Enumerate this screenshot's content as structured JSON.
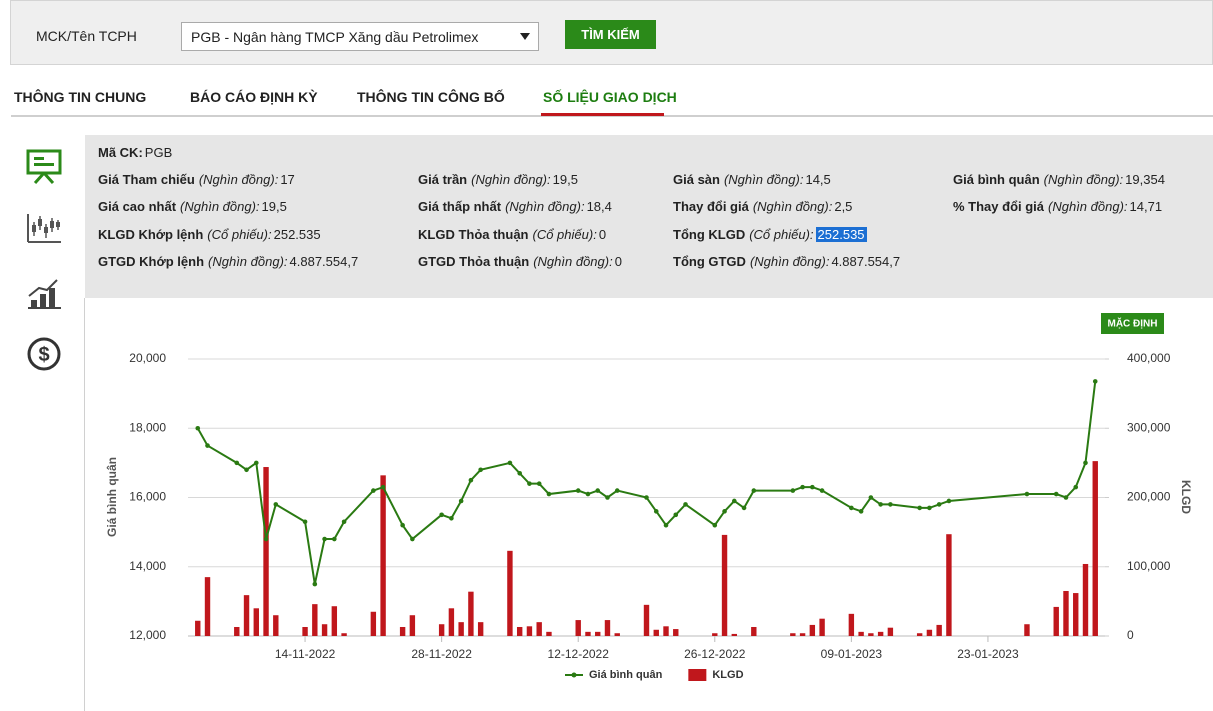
{
  "search": {
    "label": "MCK/Tên TCPH",
    "selected": "PGB - Ngân hàng TMCP Xăng dầu Petrolimex",
    "button": "TÌM KIẾM"
  },
  "tabs": [
    "THÔNG TIN CHUNG",
    "BÁO CÁO ĐỊNH KỲ",
    "THÔNG TIN CÔNG BỐ",
    "SỐ LIỆU GIAO DỊCH"
  ],
  "active_tab": 3,
  "info": {
    "rows": [
      [
        {
          "label": "Mã CK:",
          "value": "PGB"
        }
      ],
      [
        {
          "label": "Giá Tham chiếu",
          "unit": "(Nghìn đồng):",
          "value": "17"
        },
        {
          "label": "Giá trần",
          "unit": "(Nghìn đồng):",
          "value": "19,5"
        },
        {
          "label": "Giá sàn",
          "unit": "(Nghìn đồng):",
          "value": "14,5"
        },
        {
          "label": "Giá bình quân",
          "unit": "(Nghìn đồng):",
          "value": "19,354"
        }
      ],
      [
        {
          "label": "Giá cao nhất",
          "unit": "(Nghìn đồng):",
          "value": "19,5"
        },
        {
          "label": "Giá thấp nhất",
          "unit": "(Nghìn đồng):",
          "value": "18,4"
        },
        {
          "label": "Thay đổi giá",
          "unit": "(Nghìn đồng):",
          "value": "2,5"
        },
        {
          "label": "% Thay đổi giá",
          "unit": "(Nghìn đồng):",
          "value": "14,71"
        }
      ],
      [
        {
          "label": "KLGD Khớp lệnh",
          "unit": "(Cổ phiếu):",
          "value": "252.535"
        },
        {
          "label": "KLGD Thỏa thuận",
          "unit": "(Cổ phiếu):",
          "value": "0"
        },
        {
          "label": "Tổng KLGD",
          "unit": "(Cổ phiếu):",
          "value": "252.535",
          "highlighted": true
        }
      ],
      [
        {
          "label": "GTGD Khớp lệnh",
          "unit": "(Nghìn đồng):",
          "value": "4.887.554,7"
        },
        {
          "label": "GTGD Thỏa thuận",
          "unit": "(Nghìn đồng):",
          "value": "0"
        },
        {
          "label": "Tổng GTGD",
          "unit": "(Nghìn đồng):",
          "value": "4.887.554,7"
        }
      ]
    ]
  },
  "chart_button": "MẶC ĐỊNH",
  "chart_data": {
    "type": "combo",
    "y_label": "Giá bình quân",
    "y2_label": "KLGD",
    "x": [
      "03-11-2022",
      "04-11-2022",
      "07-11-2022",
      "08-11-2022",
      "09-11-2022",
      "10-11-2022",
      "11-11-2022",
      "14-11-2022",
      "15-11-2022",
      "16-11-2022",
      "17-11-2022",
      "18-11-2022",
      "21-11-2022",
      "22-11-2022",
      "24-11-2022",
      "25-11-2022",
      "28-11-2022",
      "29-11-2022",
      "30-11-2022",
      "01-12-2022",
      "02-12-2022",
      "05-12-2022",
      "06-12-2022",
      "07-12-2022",
      "08-12-2022",
      "09-12-2022",
      "12-12-2022",
      "13-12-2022",
      "14-12-2022",
      "15-12-2022",
      "16-12-2022",
      "19-12-2022",
      "20-12-2022",
      "21-12-2022",
      "22-12-2022",
      "23-12-2022",
      "26-12-2022",
      "27-12-2022",
      "28-12-2022",
      "29-12-2022",
      "30-12-2022",
      "03-01-2023",
      "04-01-2023",
      "05-01-2023",
      "06-01-2023",
      "09-01-2023",
      "10-01-2023",
      "11-01-2023",
      "12-01-2023",
      "13-01-2023",
      "16-01-2023",
      "17-01-2023",
      "18-01-2023",
      "19-01-2023",
      "27-01-2023",
      "30-01-2023",
      "31-01-2023",
      "01-02-2023",
      "02-02-2023",
      "03-02-2023"
    ],
    "series": [
      {
        "name": "Giá bình quân",
        "type": "line",
        "color": "#2a7a12",
        "values": [
          18000,
          17500,
          17000,
          16800,
          17000,
          14800,
          15800,
          15300,
          13500,
          14800,
          14800,
          15300,
          16200,
          16300,
          15200,
          14800,
          15500,
          15400,
          15900,
          16500,
          16800,
          17000,
          16700,
          16400,
          16400,
          16100,
          16200,
          16100,
          16200,
          16000,
          16200,
          16000,
          15600,
          15200,
          15500,
          15800,
          15200,
          15600,
          15900,
          15700,
          16200,
          16200,
          16300,
          16300,
          16200,
          15700,
          15600,
          16000,
          15800,
          15800,
          15700,
          15700,
          15800,
          15900,
          16100,
          16100,
          16000,
          16300,
          17000,
          19354
        ]
      },
      {
        "name": "KLGD",
        "type": "bar",
        "axis": "y2",
        "color": "#c0171c",
        "values": [
          22000,
          85000,
          13000,
          59000,
          40000,
          244000,
          30000,
          13000,
          46000,
          17000,
          43000,
          4000,
          35000,
          232000,
          13000,
          30000,
          17000,
          40000,
          20000,
          64000,
          20000,
          123000,
          13000,
          14000,
          20000,
          6000,
          23000,
          6000,
          6000,
          23000,
          4000,
          45000,
          9000,
          14000,
          10000,
          0,
          4000,
          146000,
          3000,
          0,
          13000,
          4000,
          4000,
          16000,
          25000,
          32000,
          6000,
          4000,
          6000,
          12000,
          4000,
          9000,
          16000,
          147000,
          17000,
          42000,
          65000,
          62000,
          104000,
          252535
        ]
      }
    ],
    "xlim": [
      "02-11-2022",
      "04-02-2023"
    ],
    "xticks": [
      "14-11-2022",
      "28-11-2022",
      "12-12-2022",
      "26-12-2022",
      "09-01-2023",
      "23-01-2023"
    ],
    "ylim": [
      12000,
      20000
    ],
    "yticks": [
      {
        "value": 12000,
        "label": "12,000"
      },
      {
        "value": 14000,
        "label": "14,000"
      },
      {
        "value": 16000,
        "label": "16,000"
      },
      {
        "value": 18000,
        "label": "18,000"
      },
      {
        "value": 20000,
        "label": "20,000"
      }
    ],
    "y2lim": [
      0,
      400000
    ],
    "y2ticks": [
      0,
      {
        "value": 100000,
        "label": "100,000"
      },
      {
        "value": 200000,
        "label": "200,000"
      },
      {
        "value": 300000,
        "label": "300,000"
      },
      {
        "value": 400000,
        "label": "400,000"
      }
    ],
    "grid": true,
    "legend": "bottom"
  }
}
